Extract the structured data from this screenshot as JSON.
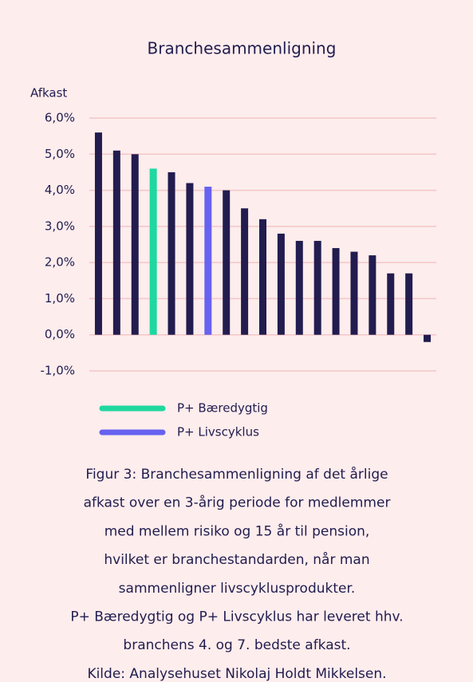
{
  "chart_data": {
    "type": "bar",
    "title": "Branchesammenligning",
    "y_label": "Afkast",
    "categories": [
      null,
      null,
      null,
      null,
      null,
      null,
      null,
      null,
      null,
      null,
      null,
      null,
      null,
      null,
      null,
      null,
      null,
      null,
      null
    ],
    "values": [
      5.6,
      5.1,
      5.0,
      4.6,
      4.5,
      4.2,
      4.1,
      4.0,
      3.5,
      3.2,
      2.8,
      2.6,
      2.6,
      2.4,
      2.3,
      2.2,
      1.7,
      1.7,
      -0.2
    ],
    "colors": [
      "#221c4f",
      "#221c4f",
      "#221c4f",
      "#1ed8a0",
      "#221c4f",
      "#221c4f",
      "#6762f0",
      "#221c4f",
      "#221c4f",
      "#221c4f",
      "#221c4f",
      "#221c4f",
      "#221c4f",
      "#221c4f",
      "#221c4f",
      "#221c4f",
      "#221c4f",
      "#221c4f",
      "#221c4f"
    ],
    "legend": [
      {
        "name": "P+ Bæredygtig",
        "color": "#1ed8a0"
      },
      {
        "name": "P+ Livscyklus",
        "color": "#6762f0"
      }
    ],
    "ylim": [
      -1,
      6
    ],
    "yticks": [
      {
        "value": -1,
        "label": "-1,0%"
      },
      {
        "value": 0,
        "label": "0,0%"
      },
      {
        "value": 1,
        "label": "1,0%"
      },
      {
        "value": 2,
        "label": "2,0%"
      },
      {
        "value": 3,
        "label": "3,0%"
      },
      {
        "value": 4,
        "label": "4,0%"
      },
      {
        "value": 5,
        "label": "5,0%"
      },
      {
        "value": 6,
        "label": "6,0%"
      }
    ],
    "grid": true,
    "caption": [
      "Figur 3: Branchesammenligning af det årlige",
      "afkast over en 3-årig periode for medlemmer",
      "med mellem risiko og 15 år til pension,",
      "hvilket er branchestandarden, når man",
      "sammenligner livscyklusprodukter.",
      "P+ Bæredygtig og P+ Livscyklus har leveret hhv.",
      "branchens 4. og 7. bedste afkast.",
      "Kilde: Analysehuset Nikolaj Holdt Mikkelsen."
    ]
  }
}
